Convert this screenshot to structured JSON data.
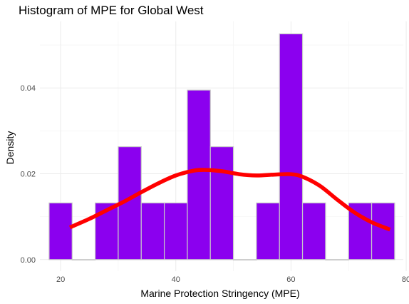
{
  "chart_data": {
    "type": "bar",
    "title": "Histogram of MPE for Global West",
    "xlabel": "Marine Protection Stringency (MPE)",
    "ylabel": "Density",
    "xlim": [
      16.4,
      79.5
    ],
    "ylim": [
      -0.0027,
      0.0555
    ],
    "x_ticks": [
      20,
      40,
      60,
      80
    ],
    "x_tick_labels": [
      "20",
      "40",
      "60",
      "80"
    ],
    "y_ticks": [
      0.0,
      0.02,
      0.04
    ],
    "y_tick_labels": [
      "0.00",
      "0.02",
      "0.04"
    ],
    "bin_width": 4,
    "bins": [
      {
        "start": 18,
        "end": 22,
        "density": 0.0132
      },
      {
        "start": 22,
        "end": 26,
        "density": 0.0
      },
      {
        "start": 26,
        "end": 30,
        "density": 0.0132
      },
      {
        "start": 30,
        "end": 34,
        "density": 0.0263
      },
      {
        "start": 34,
        "end": 38,
        "density": 0.0132
      },
      {
        "start": 38,
        "end": 42,
        "density": 0.0132
      },
      {
        "start": 42,
        "end": 46,
        "density": 0.0395
      },
      {
        "start": 46,
        "end": 50,
        "density": 0.0263
      },
      {
        "start": 50,
        "end": 54,
        "density": 0.0
      },
      {
        "start": 54,
        "end": 58,
        "density": 0.0132
      },
      {
        "start": 58,
        "end": 62,
        "density": 0.0526
      },
      {
        "start": 62,
        "end": 66,
        "density": 0.0132
      },
      {
        "start": 66,
        "end": 70,
        "density": 0.0
      },
      {
        "start": 70,
        "end": 74,
        "density": 0.0132
      },
      {
        "start": 74,
        "end": 78,
        "density": 0.0132
      }
    ],
    "density_curve": {
      "x": [
        21.6,
        25,
        28,
        31,
        34,
        37,
        40,
        43,
        45,
        48,
        51,
        54,
        57,
        60,
        62,
        65,
        68,
        71,
        74,
        77.2
      ],
      "y": [
        0.0075,
        0.0095,
        0.0115,
        0.0135,
        0.0157,
        0.0178,
        0.0196,
        0.0207,
        0.0209,
        0.0206,
        0.0199,
        0.0196,
        0.0198,
        0.0199,
        0.0193,
        0.0172,
        0.014,
        0.011,
        0.0087,
        0.007
      ]
    },
    "grid": true,
    "colors": {
      "bar_fill": "#8b00ef",
      "bar_outline": "#c8c8c8",
      "curve": "#ff0000"
    }
  }
}
